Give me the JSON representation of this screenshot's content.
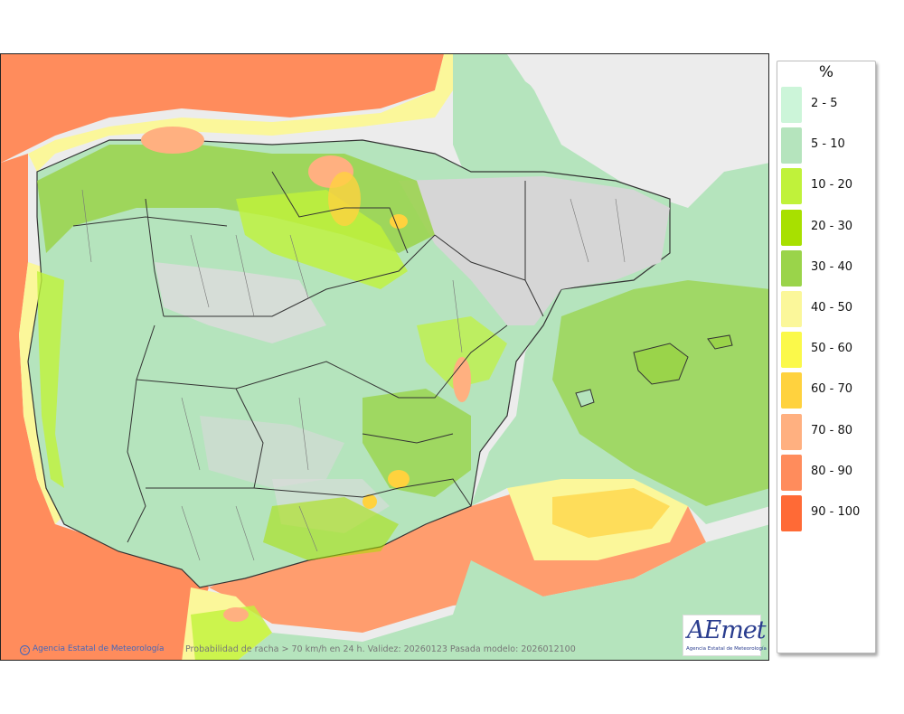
{
  "legend": {
    "title": "%",
    "items": [
      {
        "label": "2 - 5",
        "color": "#ccf5d9"
      },
      {
        "label": "5 - 10",
        "color": "#b5e4bd"
      },
      {
        "label": "10 - 20",
        "color": "#c0f23a"
      },
      {
        "label": "20 - 30",
        "color": "#a8e000"
      },
      {
        "label": "30 - 40",
        "color": "#9ad44a"
      },
      {
        "label": "40 - 50",
        "color": "#fbf79a"
      },
      {
        "label": "50 - 60",
        "color": "#fbf94a"
      },
      {
        "label": "60 - 70",
        "color": "#ffd23e"
      },
      {
        "label": "70 - 80",
        "color": "#ffb080"
      },
      {
        "label": "80 - 90",
        "color": "#ff8c5c"
      },
      {
        "label": "90 - 100",
        "color": "#ff6a36"
      }
    ]
  },
  "map": {
    "credit": "Agencia Estatal de Meteorología",
    "caption": "Probabilidad de racha > 70 km/h en 24 h. Validez: 20260123 Pasada modelo: 2026012100",
    "no_data_color": "#ececec"
  },
  "logo": {
    "word": "AEmet",
    "subtitle": "Agencia Estatal de Meteorología"
  }
}
